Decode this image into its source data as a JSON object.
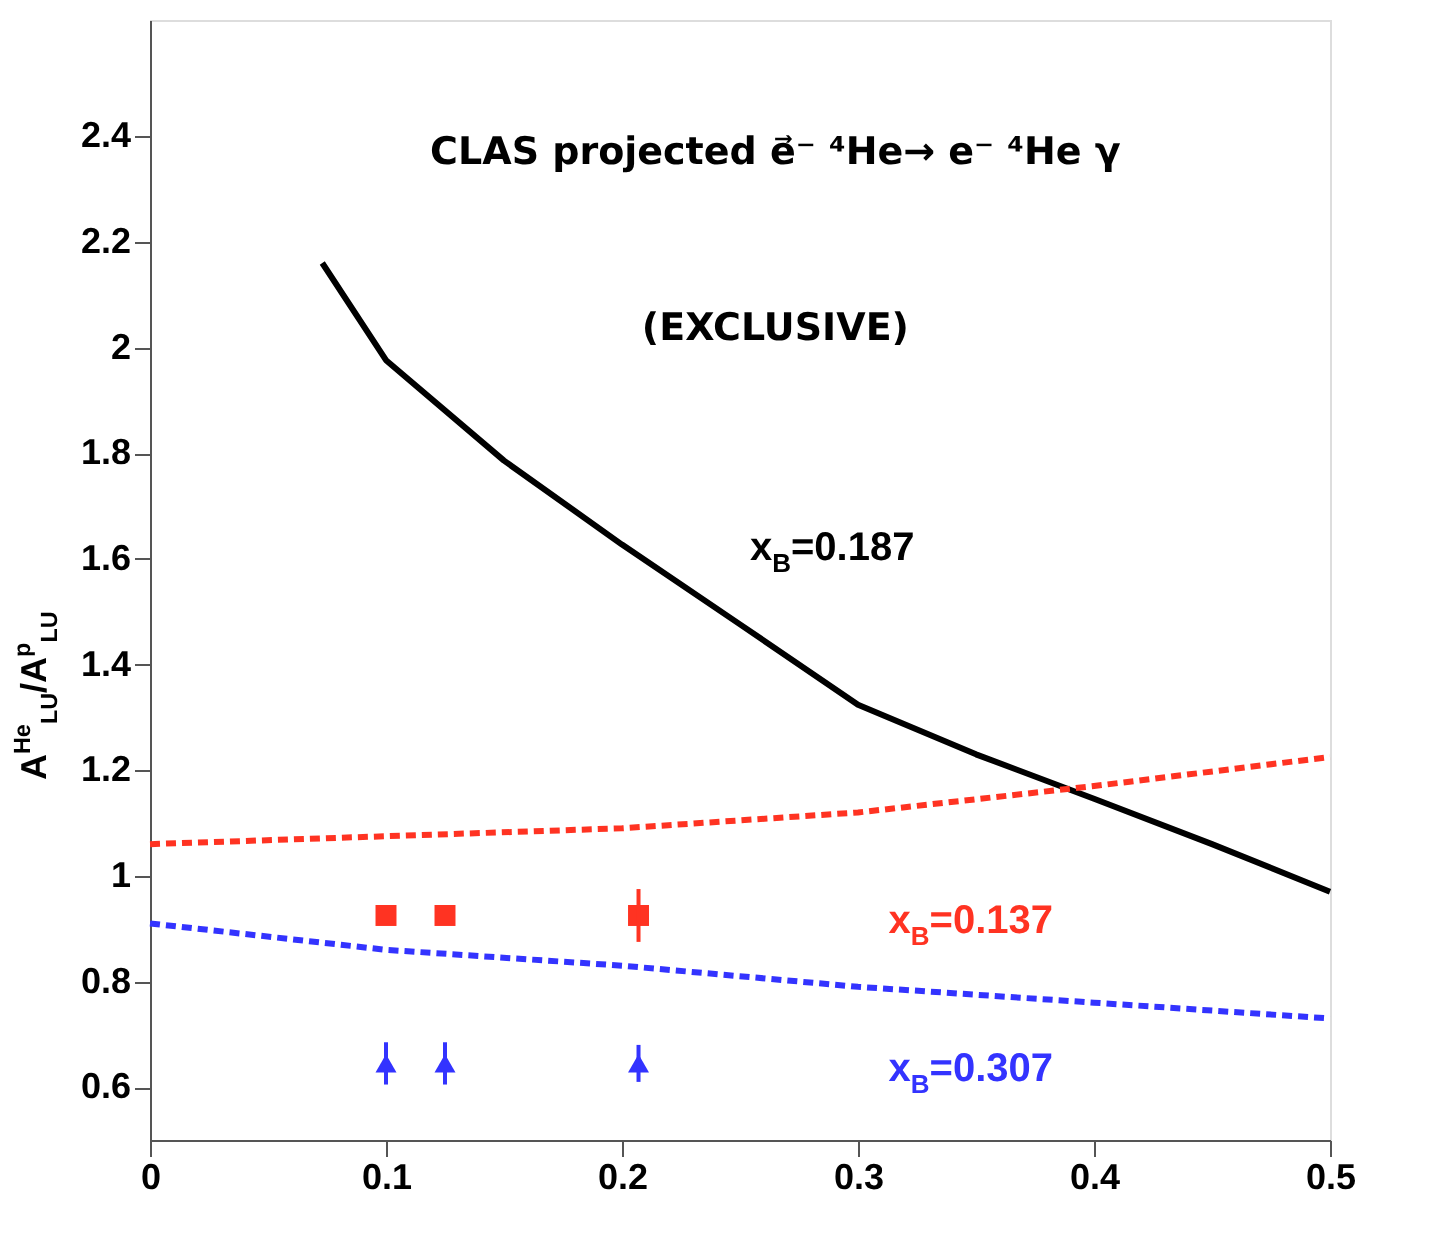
{
  "chart_data": {
    "type": "line",
    "title": "CLAS projected e⃗⁻ ⁴He→ e⁻ ⁴He γ",
    "subtitle": "(EXCLUSIVE)",
    "ylabel": "A$^{He}$$_{LU}$/A$^{p}$$_{LU}$",
    "xlim": [
      0,
      0.5
    ],
    "ylim": [
      0.5,
      2.62
    ],
    "xticks": [
      0,
      0.1,
      0.2,
      0.3,
      0.4,
      0.5
    ],
    "yticks": [
      0.6,
      0.8,
      1,
      1.2,
      1.4,
      1.6,
      1.8,
      2,
      2.2,
      2.4
    ],
    "grid": false,
    "series": [
      {
        "name": "x$_{B}$=0.187",
        "color": "#000000",
        "line_style": "solid",
        "x": [
          0.073,
          0.1,
          0.15,
          0.2,
          0.25,
          0.3,
          0.35,
          0.4,
          0.45,
          0.5
        ],
        "values": [
          2.16,
          1.976,
          1.786,
          1.627,
          1.476,
          1.324,
          1.23,
          1.146,
          1.06,
          0.97
        ]
      },
      {
        "type": "line",
        "color": "#ff3322",
        "line_style": "dashed",
        "x": [
          0,
          0.1,
          0.2,
          0.3,
          0.4,
          0.5
        ],
        "values": [
          1.06,
          1.075,
          1.09,
          1.12,
          1.17,
          1.225
        ]
      },
      {
        "name": "x$_{B}$=0.137",
        "type": "scatter",
        "color": "#ff3322",
        "marker": "square",
        "x": [
          0.1,
          0.125,
          0.207
        ],
        "values": [
          0.925,
          0.925,
          0.925
        ],
        "errors": [
          0.015,
          0.015,
          0.05
        ]
      },
      {
        "type": "line",
        "color": "#3333ff",
        "line_style": "dashed",
        "x": [
          0,
          0.1,
          0.2,
          0.3,
          0.4,
          0.5
        ],
        "values": [
          0.91,
          0.86,
          0.83,
          0.79,
          0.76,
          0.73
        ]
      },
      {
        "name": "x$_{B}$=0.307",
        "type": "scatter",
        "color": "#3333ff",
        "marker": "triangle",
        "x": [
          0.1,
          0.125,
          0.207
        ],
        "values": [
          0.645,
          0.645,
          0.645
        ],
        "errors": [
          0.04,
          0.04,
          0.035
        ]
      }
    ]
  }
}
